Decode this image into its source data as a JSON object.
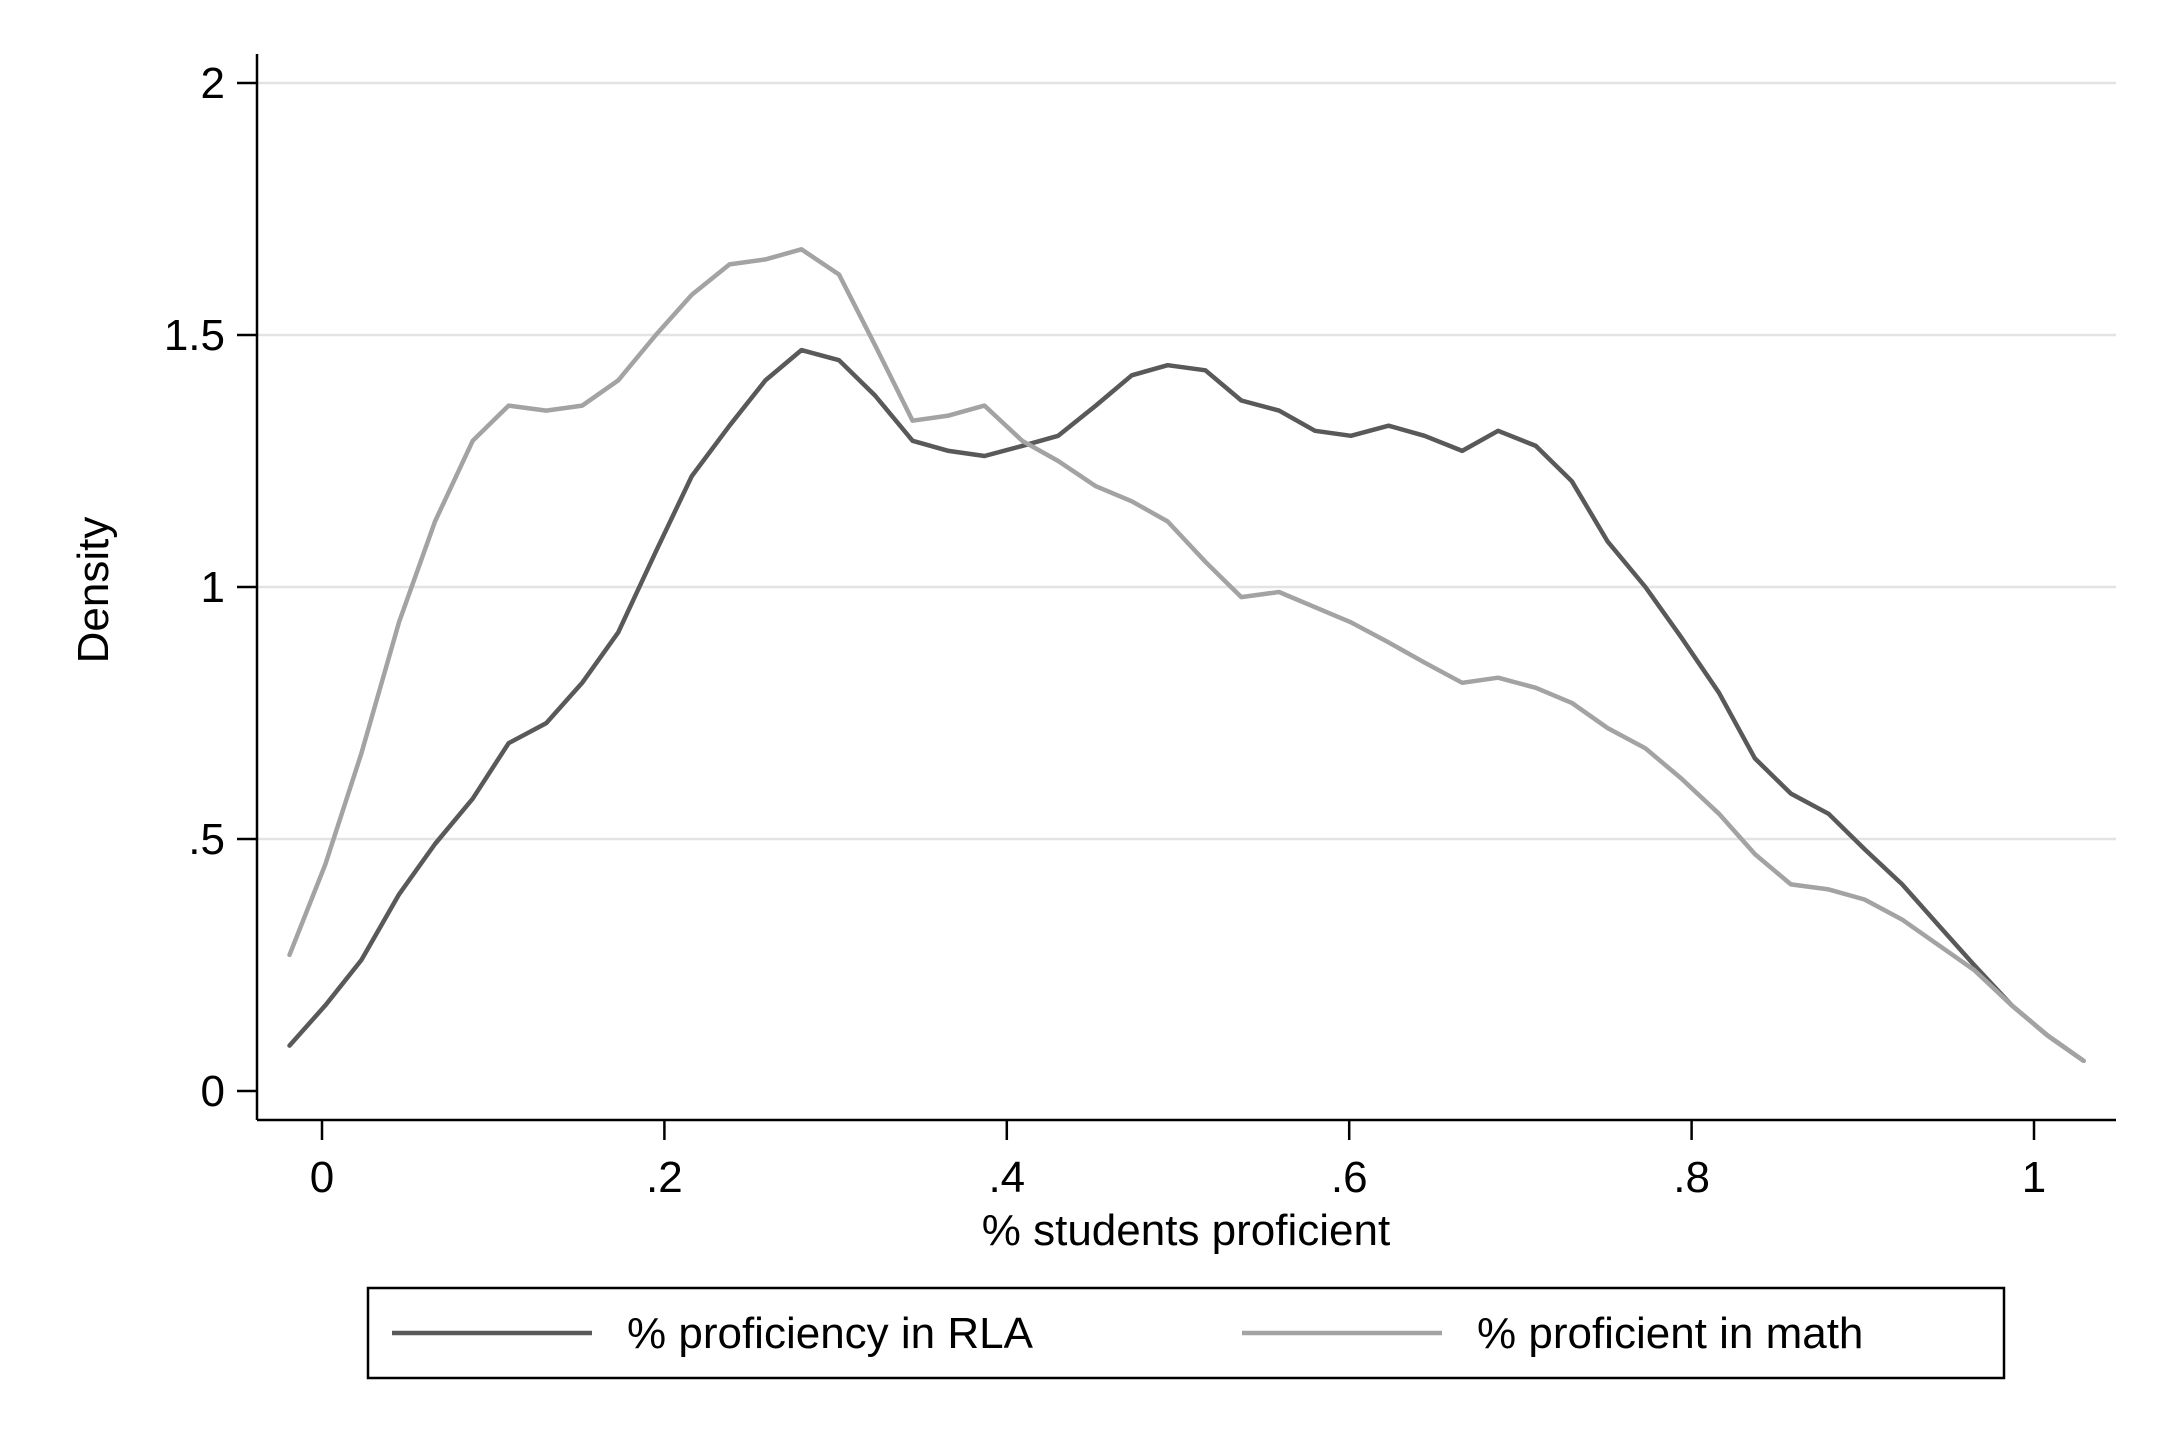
{
  "chart_data": {
    "type": "line",
    "xlabel": "% students proficient",
    "ylabel": "Density",
    "xlim": [
      -0.02,
      1.03
    ],
    "ylim": [
      0,
      2
    ],
    "xticks": [
      0,
      0.2,
      0.4,
      0.6,
      0.8,
      1
    ],
    "xtick_labels": [
      "0",
      ".2",
      ".4",
      ".6",
      ".8",
      "1"
    ],
    "yticks": [
      0,
      0.5,
      1,
      1.5,
      2
    ],
    "ytick_labels": [
      "0",
      ".5",
      "1",
      "1.5",
      "2"
    ],
    "grid": true,
    "legend_position": "bottom",
    "series": [
      {
        "name": "% proficiency in RLA",
        "color": "#595959",
        "x": [
          -0.019,
          0.002,
          0.023,
          0.045,
          0.066,
          0.088,
          0.109,
          0.131,
          0.152,
          0.173,
          0.195,
          0.216,
          0.238,
          0.259,
          0.28,
          0.302,
          0.323,
          0.345,
          0.366,
          0.387,
          0.409,
          0.43,
          0.452,
          0.473,
          0.494,
          0.516,
          0.537,
          0.559,
          0.58,
          0.601,
          0.623,
          0.644,
          0.666,
          0.687,
          0.709,
          0.73,
          0.751,
          0.773,
          0.794,
          0.816,
          0.837,
          0.858,
          0.88,
          0.901,
          0.923,
          0.944,
          0.965,
          0.987,
          1.008,
          1.029
        ],
        "y": [
          0.09,
          0.17,
          0.26,
          0.39,
          0.49,
          0.58,
          0.69,
          0.73,
          0.81,
          0.91,
          1.07,
          1.22,
          1.32,
          1.41,
          1.47,
          1.45,
          1.38,
          1.29,
          1.27,
          1.26,
          1.28,
          1.3,
          1.36,
          1.42,
          1.44,
          1.43,
          1.37,
          1.35,
          1.31,
          1.3,
          1.32,
          1.3,
          1.27,
          1.31,
          1.28,
          1.21,
          1.09,
          1.0,
          0.9,
          0.79,
          0.66,
          0.59,
          0.55,
          0.48,
          0.41,
          0.33,
          0.25,
          0.17,
          0.11,
          0.06
        ]
      },
      {
        "name": "% proficient in math",
        "color": "#a3a3a3",
        "x": [
          -0.019,
          0.002,
          0.023,
          0.045,
          0.066,
          0.088,
          0.109,
          0.131,
          0.152,
          0.173,
          0.195,
          0.216,
          0.238,
          0.259,
          0.28,
          0.302,
          0.323,
          0.345,
          0.366,
          0.387,
          0.409,
          0.43,
          0.452,
          0.473,
          0.494,
          0.516,
          0.537,
          0.559,
          0.58,
          0.601,
          0.623,
          0.644,
          0.666,
          0.687,
          0.709,
          0.73,
          0.751,
          0.773,
          0.794,
          0.816,
          0.837,
          0.858,
          0.88,
          0.901,
          0.923,
          0.944,
          0.965,
          0.987,
          1.008,
          1.029
        ],
        "y": [
          0.27,
          0.45,
          0.67,
          0.93,
          1.13,
          1.29,
          1.36,
          1.35,
          1.36,
          1.41,
          1.5,
          1.58,
          1.64,
          1.65,
          1.67,
          1.62,
          1.48,
          1.33,
          1.34,
          1.36,
          1.29,
          1.25,
          1.2,
          1.17,
          1.13,
          1.05,
          0.98,
          0.99,
          0.96,
          0.93,
          0.89,
          0.85,
          0.81,
          0.82,
          0.8,
          0.77,
          0.72,
          0.68,
          0.62,
          0.55,
          0.47,
          0.41,
          0.4,
          0.38,
          0.34,
          0.29,
          0.24,
          0.17,
          0.11,
          0.06
        ]
      }
    ]
  }
}
